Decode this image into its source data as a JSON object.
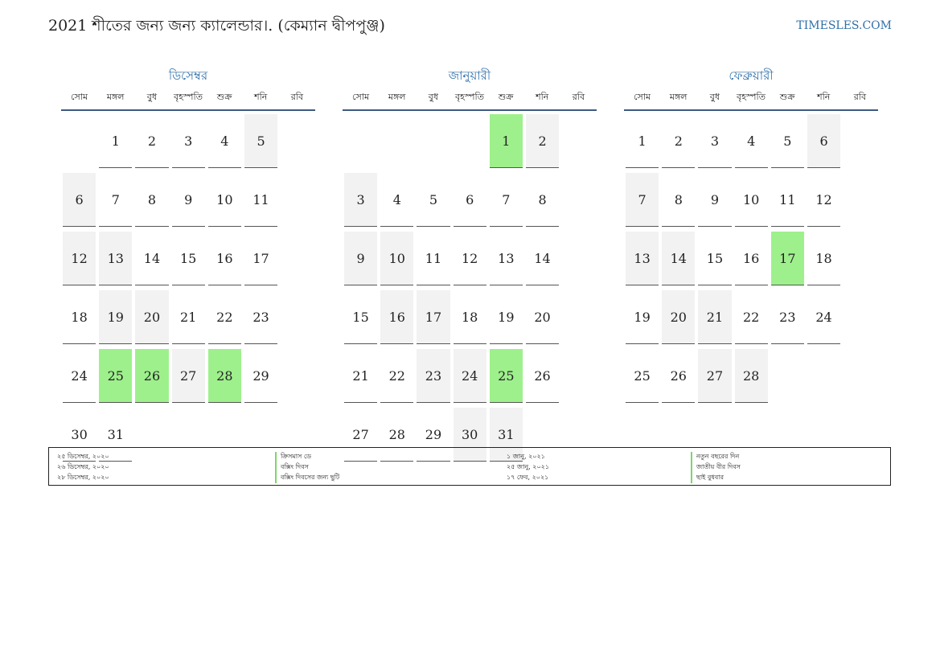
{
  "header": {
    "title": "2021 শীতের জন্য জন্য ক্যালেন্ডার।. (কেম্যান দ্বীপপুঞ্জ)",
    "brand": "TIMESLES.COM"
  },
  "weekdays": [
    "সোম",
    "মঙ্গল",
    "বুধ",
    "বৃহস্পতি",
    "শুক্র",
    "শনি",
    "রবি"
  ],
  "months": [
    {
      "name": "ডিসেম্বর",
      "offset": 1,
      "days": 31,
      "holidays": [
        25,
        26,
        28
      ]
    },
    {
      "name": "জানুয়ারী",
      "offset": 4,
      "days": 31,
      "holidays": [
        1,
        25
      ]
    },
    {
      "name": "ফেব্রুয়ারী",
      "offset": 0,
      "days": 28,
      "holidays": [
        17
      ]
    }
  ],
  "legend": {
    "left": [
      {
        "date": "২৫ ডিসেম্বর, ২০২০",
        "name": "ক্রিসমাস ডে"
      },
      {
        "date": "২৬ ডিসেম্বর, ২০২০",
        "name": "বক্সিং দিবস"
      },
      {
        "date": "২৮ ডিসেম্বর, ২০২০",
        "name": "বক্সিং দিবসের জন্য ছুটি"
      }
    ],
    "right": [
      {
        "date": "১ জানু, ২০২১",
        "name": "নতুন বছরের দিন"
      },
      {
        "date": "২৫ জানু, ২০২১",
        "name": "জাতীয় বীর দিবস"
      },
      {
        "date": "১৭ ফেব, ২০২১",
        "name": "ছাই বুধবার"
      }
    ]
  },
  "colors": {
    "holiday": "#9ef08c",
    "weekend": "#f2f2f2",
    "accent": "#2f6fa8"
  }
}
